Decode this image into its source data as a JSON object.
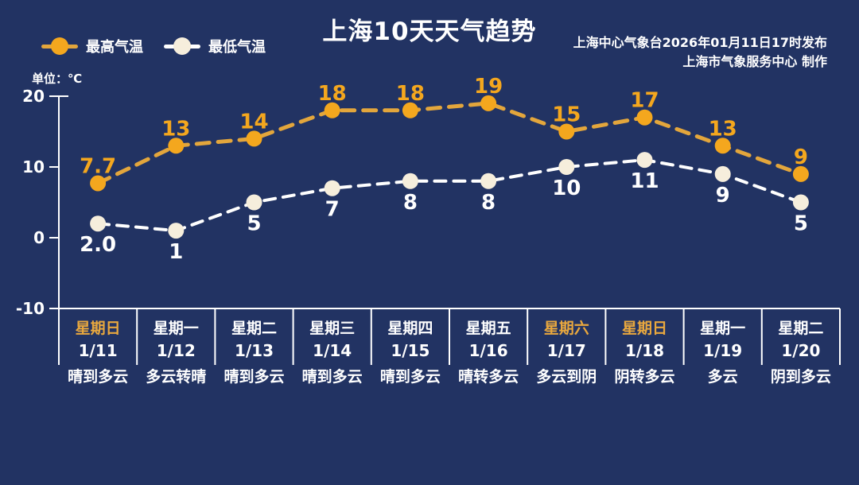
{
  "header": {
    "title": "上海10天天气趋势",
    "issued": "上海中心气象台2026年01月11日17时发布",
    "producer": "上海市气象服务中心  制作",
    "unit": "单位：℃"
  },
  "legend": {
    "high_label": "最高气温",
    "low_label": "最低气温"
  },
  "colors": {
    "background": "#223363",
    "high_orange": "#F4A71E",
    "high_line": "#E3A63C",
    "weekend_orange": "#E9A83E",
    "low_line": "#FFFFFF",
    "low_marker": "#F6EEDC",
    "text_white": "#FFFFFF",
    "axis": "#FFFFFF"
  },
  "chart_data": {
    "type": "line",
    "title": "上海10天天气趋势",
    "unit": "℃",
    "categories": [
      "1/11",
      "1/12",
      "1/13",
      "1/14",
      "1/15",
      "1/16",
      "1/17",
      "1/18",
      "1/19",
      "1/20"
    ],
    "series": [
      {
        "name": "最高气温",
        "values": [
          7.7,
          13,
          14,
          18,
          18,
          19,
          15,
          17,
          13,
          9
        ],
        "labels": [
          "7.7",
          "13",
          "14",
          "18",
          "18",
          "19",
          "15",
          "17",
          "13",
          "9"
        ],
        "color": "#F4A71E",
        "label_position": "above"
      },
      {
        "name": "最低气温",
        "values": [
          2.0,
          1,
          5,
          7,
          8,
          8,
          10,
          11,
          9,
          5
        ],
        "labels": [
          "2.0",
          "1",
          "5",
          "7",
          "8",
          "8",
          "10",
          "11",
          "9",
          "5"
        ],
        "color": "#FFFFFF",
        "marker_color": "#F6EEDC",
        "label_position": "below"
      }
    ],
    "ylim": [
      -10,
      20
    ],
    "yticks": [
      20,
      10,
      0,
      -10
    ],
    "grid": false,
    "legend_position": "top-left"
  },
  "days": [
    {
      "weekday": "星期日",
      "date": "1/11",
      "weather": "晴到多云",
      "weekend": true
    },
    {
      "weekday": "星期一",
      "date": "1/12",
      "weather": "多云转晴",
      "weekend": false
    },
    {
      "weekday": "星期二",
      "date": "1/13",
      "weather": "晴到多云",
      "weekend": false
    },
    {
      "weekday": "星期三",
      "date": "1/14",
      "weather": "晴到多云",
      "weekend": false
    },
    {
      "weekday": "星期四",
      "date": "1/15",
      "weather": "晴到多云",
      "weekend": false
    },
    {
      "weekday": "星期五",
      "date": "1/16",
      "weather": "晴转多云",
      "weekend": false
    },
    {
      "weekday": "星期六",
      "date": "1/17",
      "weather": "多云到阴",
      "weekend": true
    },
    {
      "weekday": "星期日",
      "date": "1/18",
      "weather": "阴转多云",
      "weekend": true
    },
    {
      "weekday": "星期一",
      "date": "1/19",
      "weather": "多云",
      "weekend": false
    },
    {
      "weekday": "星期二",
      "date": "1/20",
      "weather": "阴到多云",
      "weekend": false
    }
  ]
}
